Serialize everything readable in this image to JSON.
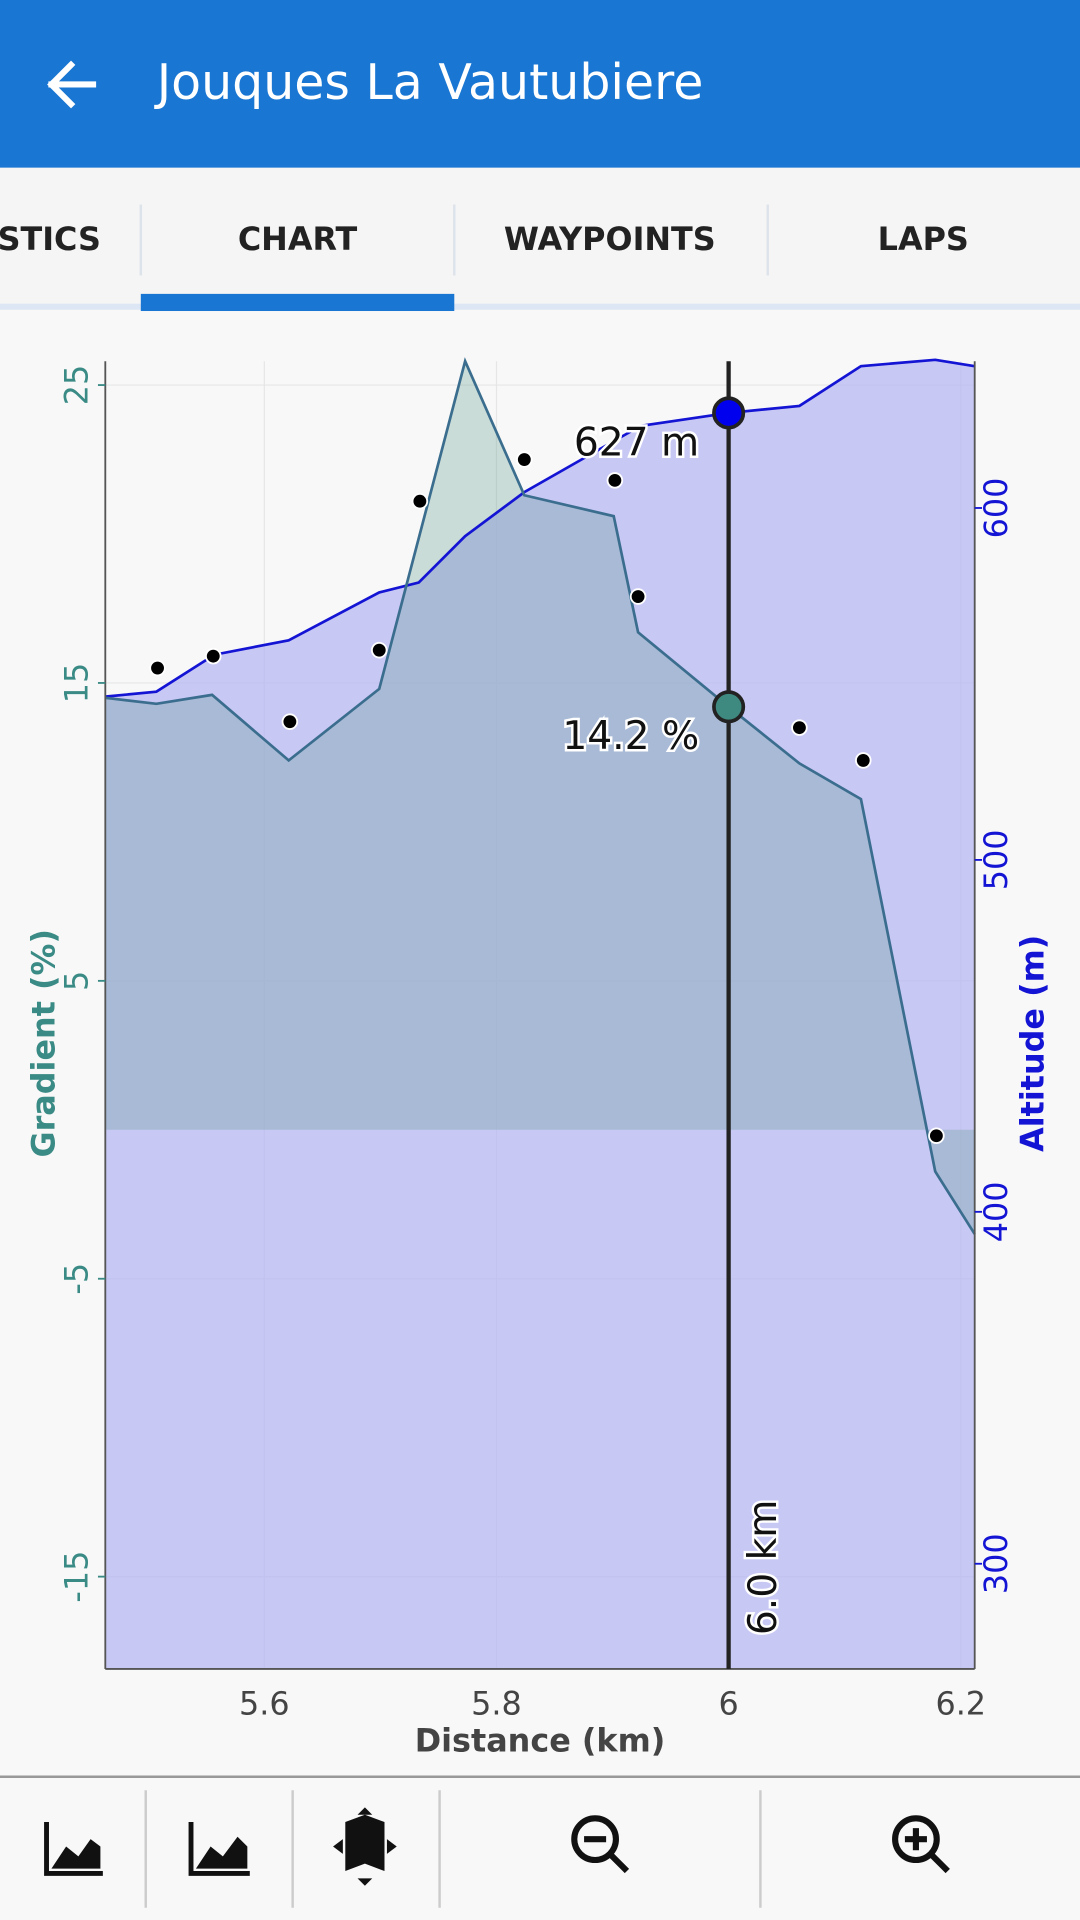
{
  "app_bar": {
    "title": "Jouques La Vautubiere"
  },
  "tabs": [
    "STICS",
    "CHART",
    "WAYPOINTS",
    "LAPS"
  ],
  "chart_data": {
    "type": "line",
    "x_label": "Distance (km)",
    "y_label": "Gradient (%)",
    "y2_label": "Altitude (m)",
    "xlim": [
      5.463,
      6.212
    ],
    "xticks": [
      5.6,
      5.8,
      6,
      6.2
    ],
    "ylim": [
      -18.1,
      25.8
    ],
    "yticks": [
      25,
      15,
      5,
      -5,
      -15
    ],
    "y2lim": [
      270.1,
      641.7
    ],
    "y2ticks": [
      600,
      500,
      400,
      300
    ],
    "y_color": "#3a8a85",
    "y2_color": "#1414d4",
    "grid": true,
    "series": [
      {
        "axis": "y2",
        "color": "#1414d4",
        "fill": "#b4b4f4",
        "x": [
          5.463,
          5.507,
          5.557,
          5.621,
          5.699,
          5.733,
          5.773,
          5.824,
          5.924,
          6.0,
          6.061,
          6.114,
          6.178,
          6.212
        ],
        "values": [
          546.4,
          547.8,
          558.3,
          562.4,
          576.0,
          578.8,
          592.0,
          604.5,
          623.3,
          627,
          629,
          640.3,
          642.1,
          640.3
        ]
      },
      {
        "axis": "y",
        "color": "#3b6e8e",
        "fill": "#5f9a90",
        "x": [
          5.463,
          5.507,
          5.555,
          5.621,
          5.699,
          5.773,
          5.824,
          5.901,
          5.922,
          6.0,
          6.061,
          6.114,
          6.178,
          6.212
        ],
        "values": [
          14.5,
          14.3,
          14.6,
          12.4,
          14.8,
          25.8,
          21.3,
          20.6,
          16.7,
          14.2,
          12.3,
          11.1,
          -1.4,
          -3.5
        ]
      }
    ],
    "points": {
      "axis": "y",
      "color": "#000000",
      "x": [
        5.508,
        5.556,
        5.622,
        5.699,
        5.734,
        5.824,
        5.902,
        5.922,
        6.061,
        6.116,
        6.179
      ],
      "values": [
        15.5,
        15.9,
        13.7,
        16.1,
        21.1,
        22.5,
        21.8,
        17.9,
        13.5,
        12.4,
        -0.2
      ]
    },
    "cursor": {
      "x": 6,
      "label": "6.0 km",
      "gradient": 14.2,
      "gradient_label": "14.2 %",
      "gradient_color": "#3f8a80",
      "altitude": 627,
      "altitude_label": "627 m",
      "altitude_color": "#0000ee"
    }
  }
}
